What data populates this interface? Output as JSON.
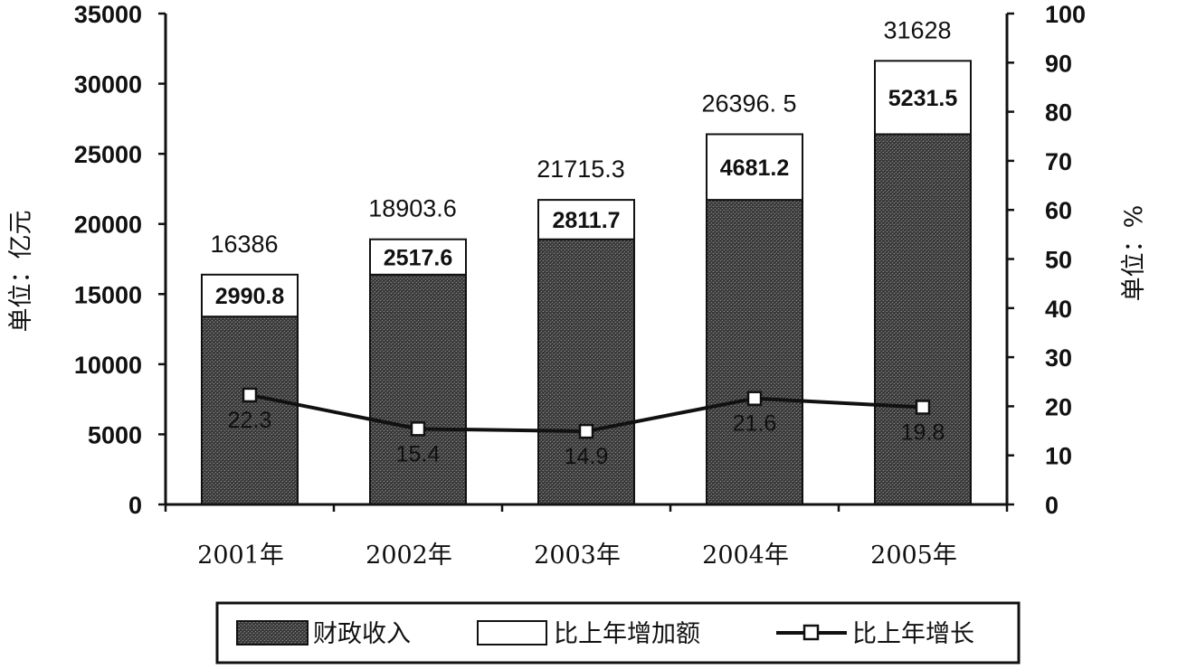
{
  "chart_data": {
    "type": "bar",
    "categories": [
      "2001年",
      "2002年",
      "2003年",
      "2004年",
      "2005年"
    ],
    "totals": [
      16386,
      18903.6,
      21715.3,
      26396.5,
      31628
    ],
    "total_labels": [
      "16386",
      "18903.6",
      "21715.3",
      "26396. 5",
      "31628"
    ],
    "series": [
      {
        "name": "财政收入",
        "values": [
          13395.2,
          16386,
          18903.6,
          21715.3,
          26396.5
        ]
      },
      {
        "name": "比上年增加额",
        "values": [
          2990.8,
          2517.6,
          2811.7,
          4681.2,
          5231.5
        ]
      },
      {
        "name": "比上年增长",
        "values": [
          22.3,
          15.4,
          14.9,
          21.6,
          19.8
        ],
        "axis": "right"
      }
    ],
    "increase_labels": [
      "2990.8",
      "2517.6",
      "2811.7",
      "4681.2",
      "5231.5"
    ],
    "growth_labels": [
      "22.3",
      "15.4",
      "14.9",
      "21.6",
      "19.8"
    ],
    "ylabel": "单位：亿元",
    "y2label": "单位：%",
    "ylim": [
      0,
      35000
    ],
    "y2lim": [
      0,
      100
    ],
    "yticks": [
      "0",
      "5000",
      "10000",
      "15000",
      "20000",
      "25000",
      "30000",
      "35000"
    ],
    "y2ticks": [
      "0",
      "10",
      "20",
      "30",
      "40",
      "50",
      "60",
      "70",
      "80",
      "90",
      "100"
    ],
    "legend_position": "bottom",
    "grid": false
  }
}
